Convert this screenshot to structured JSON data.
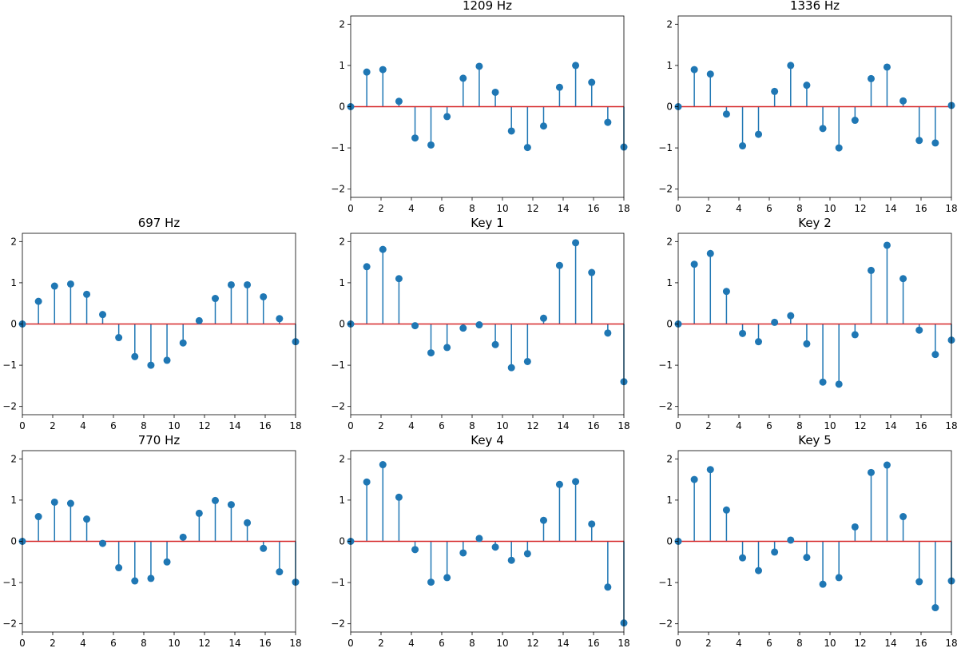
{
  "colors": {
    "stem": "#1f77b4",
    "baseline": "#d62728",
    "axis": "#000000"
  },
  "chart_data": [
    {
      "type": "stem",
      "title": "1209 Hz",
      "position": "row-1-col-2",
      "xlim": [
        0,
        18
      ],
      "ylim": [
        -2.2,
        2.2
      ],
      "xticks": [
        "0",
        "2",
        "4",
        "6",
        "8",
        "10",
        "12",
        "14",
        "16",
        "18"
      ],
      "yticks": [
        "−2",
        "−1",
        "0",
        "1",
        "2"
      ],
      "x": [
        0,
        1.06,
        2.12,
        3.18,
        4.24,
        5.29,
        6.35,
        7.41,
        8.47,
        9.53,
        10.59,
        11.65,
        12.71,
        13.76,
        14.82,
        15.88,
        16.94,
        18
      ],
      "values": [
        0,
        0.84,
        0.9,
        0.13,
        -0.76,
        -0.93,
        -0.24,
        0.69,
        0.98,
        0.35,
        -0.59,
        -0.99,
        -0.47,
        0.47,
        1.0,
        0.59,
        -0.38,
        -0.98
      ]
    },
    {
      "type": "stem",
      "title": "1336 Hz",
      "position": "row-1-col-3",
      "xlim": [
        0,
        18
      ],
      "ylim": [
        -2.2,
        2.2
      ],
      "xticks": [
        "0",
        "2",
        "4",
        "6",
        "8",
        "10",
        "12",
        "14",
        "16",
        "18"
      ],
      "yticks": [
        "−2",
        "−1",
        "0",
        "1",
        "2"
      ],
      "x": [
        0,
        1.06,
        2.12,
        3.18,
        4.24,
        5.29,
        6.35,
        7.41,
        8.47,
        9.53,
        10.59,
        11.65,
        12.71,
        13.76,
        14.82,
        15.88,
        16.94,
        18
      ],
      "values": [
        0,
        0.9,
        0.79,
        -0.18,
        -0.95,
        -0.67,
        0.37,
        1.0,
        0.52,
        -0.53,
        -1.0,
        -0.33,
        0.68,
        0.96,
        0.14,
        -0.82,
        -0.88,
        0.03
      ]
    },
    {
      "type": "stem",
      "title": "697 Hz",
      "position": "row-2-col-1",
      "xlim": [
        0,
        18
      ],
      "ylim": [
        -2.2,
        2.2
      ],
      "xticks": [
        "0",
        "2",
        "4",
        "6",
        "8",
        "10",
        "12",
        "14",
        "16",
        "18"
      ],
      "yticks": [
        "−2",
        "−1",
        "0",
        "1",
        "2"
      ],
      "x": [
        0,
        1.06,
        2.12,
        3.18,
        4.24,
        5.29,
        6.35,
        7.41,
        8.47,
        9.53,
        10.59,
        11.65,
        12.71,
        13.76,
        14.82,
        15.88,
        16.94,
        18
      ],
      "values": [
        0,
        0.55,
        0.92,
        0.97,
        0.72,
        0.23,
        -0.33,
        -0.79,
        -1.0,
        -0.88,
        -0.46,
        0.08,
        0.62,
        0.95,
        0.95,
        0.66,
        0.13,
        -0.43
      ]
    },
    {
      "type": "stem",
      "title": "Key 1",
      "position": "row-2-col-2",
      "xlim": [
        0,
        18
      ],
      "ylim": [
        -2.2,
        2.2
      ],
      "xticks": [
        "0",
        "2",
        "4",
        "6",
        "8",
        "10",
        "12",
        "14",
        "16",
        "18"
      ],
      "yticks": [
        "−2",
        "−1",
        "0",
        "1",
        "2"
      ],
      "x": [
        0,
        1.06,
        2.12,
        3.18,
        4.24,
        5.29,
        6.35,
        7.41,
        8.47,
        9.53,
        10.59,
        11.65,
        12.71,
        13.76,
        14.82,
        15.88,
        16.94,
        18
      ],
      "values": [
        0,
        1.39,
        1.81,
        1.1,
        -0.04,
        -0.7,
        -0.57,
        -0.1,
        -0.02,
        -0.5,
        -1.06,
        -0.91,
        0.14,
        1.42,
        1.97,
        1.25,
        -0.22,
        -1.4
      ]
    },
    {
      "type": "stem",
      "title": "Key 2",
      "position": "row-2-col-3",
      "xlim": [
        0,
        18
      ],
      "ylim": [
        -2.2,
        2.2
      ],
      "xticks": [
        "0",
        "2",
        "4",
        "6",
        "8",
        "10",
        "12",
        "14",
        "16",
        "18"
      ],
      "yticks": [
        "−2",
        "−1",
        "0",
        "1",
        "2"
      ],
      "x": [
        0,
        1.06,
        2.12,
        3.18,
        4.24,
        5.29,
        6.35,
        7.41,
        8.47,
        9.53,
        10.59,
        11.65,
        12.71,
        13.76,
        14.82,
        15.88,
        16.94,
        18
      ],
      "values": [
        0,
        1.45,
        1.71,
        0.79,
        -0.23,
        -0.43,
        0.04,
        0.2,
        -0.48,
        -1.41,
        -1.46,
        -0.26,
        1.3,
        1.91,
        1.1,
        -0.15,
        -0.74,
        -0.39
      ]
    },
    {
      "type": "stem",
      "title": "770 Hz",
      "position": "row-3-col-1",
      "xlim": [
        0,
        18
      ],
      "ylim": [
        -2.2,
        2.2
      ],
      "xticks": [
        "0",
        "2",
        "4",
        "6",
        "8",
        "10",
        "12",
        "14",
        "16",
        "18"
      ],
      "yticks": [
        "−2",
        "−1",
        "0",
        "1",
        "2"
      ],
      "x": [
        0,
        1.06,
        2.12,
        3.18,
        4.24,
        5.29,
        6.35,
        7.41,
        8.47,
        9.53,
        10.59,
        11.65,
        12.71,
        13.76,
        14.82,
        15.88,
        16.94,
        18
      ],
      "values": [
        0,
        0.6,
        0.95,
        0.92,
        0.54,
        -0.05,
        -0.64,
        -0.96,
        -0.9,
        -0.5,
        0.1,
        0.68,
        0.99,
        0.89,
        0.45,
        -0.17,
        -0.74,
        -0.99
      ]
    },
    {
      "type": "stem",
      "title": "Key 4",
      "position": "row-3-col-2",
      "xlim": [
        0,
        18
      ],
      "ylim": [
        -2.2,
        2.2
      ],
      "xticks": [
        "0",
        "2",
        "4",
        "6",
        "8",
        "10",
        "12",
        "14",
        "16",
        "18"
      ],
      "yticks": [
        "−2",
        "−1",
        "0",
        "1",
        "2"
      ],
      "x": [
        0,
        1.06,
        2.12,
        3.18,
        4.24,
        5.29,
        6.35,
        7.41,
        8.47,
        9.53,
        10.59,
        11.65,
        12.71,
        13.76,
        14.82,
        15.88,
        16.94,
        18
      ],
      "values": [
        0,
        1.44,
        1.86,
        1.07,
        -0.2,
        -0.99,
        -0.88,
        -0.28,
        0.07,
        -0.14,
        -0.46,
        -0.3,
        0.51,
        1.38,
        1.45,
        0.42,
        -1.11,
        -1.98
      ]
    },
    {
      "type": "stem",
      "title": "Key 5",
      "position": "row-3-col-3",
      "xlim": [
        0,
        18
      ],
      "ylim": [
        -2.2,
        2.2
      ],
      "xticks": [
        "0",
        "2",
        "4",
        "6",
        "8",
        "10",
        "12",
        "14",
        "16",
        "18"
      ],
      "yticks": [
        "−2",
        "−1",
        "0",
        "1",
        "2"
      ],
      "x": [
        0,
        1.06,
        2.12,
        3.18,
        4.24,
        5.29,
        6.35,
        7.41,
        8.47,
        9.53,
        10.59,
        11.65,
        12.71,
        13.76,
        14.82,
        15.88,
        16.94,
        18
      ],
      "values": [
        0,
        1.5,
        1.74,
        0.76,
        -0.4,
        -0.71,
        -0.26,
        0.03,
        -0.39,
        -1.04,
        -0.88,
        0.35,
        1.67,
        1.85,
        0.6,
        -0.98,
        -1.61,
        -0.96
      ]
    }
  ]
}
